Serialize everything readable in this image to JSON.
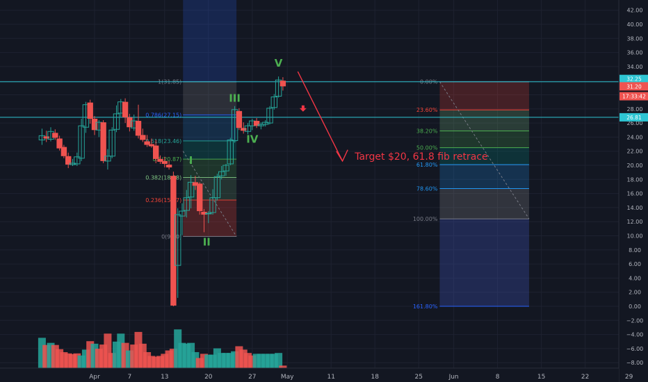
{
  "colors": {
    "background": "#131722",
    "grid": "#1e2230",
    "up": "#26a69a",
    "down": "#ef5350",
    "axis_text": "#b2b5be",
    "cyan_line": "#2ec5d3",
    "annotation": "#f23645",
    "wave_label": "#4caf50"
  },
  "chart_data": {
    "type": "candlestick",
    "ylim": [
      -9,
      43.5
    ],
    "y_ticks": [
      -8,
      -6,
      -4,
      -2,
      0,
      2,
      4,
      6,
      8,
      10,
      12,
      14,
      16,
      18,
      20,
      22,
      24,
      26,
      28,
      30,
      32,
      34,
      36,
      38,
      40,
      42
    ],
    "y_tick_labels": [
      "−8.00",
      "−6.00",
      "−4.00",
      "−2.00",
      "0.00",
      "2.00",
      "4.00",
      "6.00",
      "8.00",
      "10.00",
      "12.00",
      "14.00",
      "16.00",
      "18.00",
      "20.00",
      "22.00",
      "24.00",
      "26.00",
      "28.00",
      "30.00",
      "32.00",
      "34.00",
      "36.00",
      "38.00",
      "40.00",
      "42.00"
    ],
    "x_ticks": [
      {
        "label": "Apr",
        "x": 0
      },
      {
        "label": "7",
        "x": 4
      },
      {
        "label": "13",
        "x": 8
      },
      {
        "label": "20",
        "x": 13
      },
      {
        "label": "27",
        "x": 18
      },
      {
        "label": "May",
        "x": 22
      },
      {
        "label": "11",
        "x": 27
      },
      {
        "label": "18",
        "x": 32
      },
      {
        "label": "25",
        "x": 37
      },
      {
        "label": "Jun",
        "x": 41
      },
      {
        "label": "8",
        "x": 46
      },
      {
        "label": "15",
        "x": 51
      },
      {
        "label": "22",
        "x": 56
      },
      {
        "label": "29",
        "x": 61
      }
    ],
    "candles": [
      {
        "x": -6.0,
        "o": 23.6,
        "h": 25.2,
        "l": 22.9,
        "c": 24.2
      },
      {
        "x": -5.5,
        "o": 24.1,
        "h": 24.9,
        "l": 23.3,
        "c": 23.8
      },
      {
        "x": -5.0,
        "o": 23.7,
        "h": 25.4,
        "l": 23.4,
        "c": 24.8
      },
      {
        "x": -4.5,
        "o": 24.6,
        "h": 25.1,
        "l": 23.6,
        "c": 23.9
      },
      {
        "x": -4.0,
        "o": 23.8,
        "h": 24.2,
        "l": 22.1,
        "c": 22.4
      },
      {
        "x": -3.5,
        "o": 22.6,
        "h": 22.9,
        "l": 21.0,
        "c": 21.3
      },
      {
        "x": -3.0,
        "o": 21.3,
        "h": 21.8,
        "l": 19.6,
        "c": 20.1
      },
      {
        "x": -2.5,
        "o": 20.1,
        "h": 20.9,
        "l": 19.9,
        "c": 20.3
      },
      {
        "x": -2.0,
        "o": 20.2,
        "h": 21.8,
        "l": 19.9,
        "c": 21.2
      },
      {
        "x": -1.5,
        "o": 21.0,
        "h": 26.6,
        "l": 20.6,
        "c": 25.6
      },
      {
        "x": -1.0,
        "o": 25.4,
        "h": 29.0,
        "l": 24.6,
        "c": 28.6
      },
      {
        "x": -0.5,
        "o": 28.9,
        "h": 29.3,
        "l": 25.9,
        "c": 26.6
      },
      {
        "x": 0.0,
        "o": 26.6,
        "h": 27.0,
        "l": 24.3,
        "c": 25.0
      },
      {
        "x": 0.5,
        "o": 25.0,
        "h": 26.4,
        "l": 24.0,
        "c": 26.1
      },
      {
        "x": 1.0,
        "o": 26.1,
        "h": 26.4,
        "l": 20.3,
        "c": 20.6
      },
      {
        "x": 1.5,
        "o": 20.6,
        "h": 22.3,
        "l": 19.4,
        "c": 21.3
      },
      {
        "x": 2.0,
        "o": 21.3,
        "h": 25.4,
        "l": 21.0,
        "c": 25.0
      },
      {
        "x": 2.5,
        "o": 25.1,
        "h": 28.5,
        "l": 24.7,
        "c": 27.3
      },
      {
        "x": 3.0,
        "o": 27.4,
        "h": 29.4,
        "l": 26.9,
        "c": 29.0
      },
      {
        "x": 3.5,
        "o": 29.0,
        "h": 29.5,
        "l": 26.0,
        "c": 26.8
      },
      {
        "x": 4.0,
        "o": 26.8,
        "h": 27.3,
        "l": 24.8,
        "c": 25.4
      },
      {
        "x": 4.5,
        "o": 25.3,
        "h": 27.2,
        "l": 24.9,
        "c": 26.3
      },
      {
        "x": 5.0,
        "o": 26.3,
        "h": 28.6,
        "l": 23.8,
        "c": 24.2
      },
      {
        "x": 5.5,
        "o": 24.3,
        "h": 25.2,
        "l": 23.3,
        "c": 23.6
      },
      {
        "x": 6.0,
        "o": 23.4,
        "h": 24.3,
        "l": 22.6,
        "c": 22.9
      },
      {
        "x": 6.5,
        "o": 23.0,
        "h": 23.8,
        "l": 22.5,
        "c": 22.7
      },
      {
        "x": 7.0,
        "o": 22.8,
        "h": 23.6,
        "l": 20.3,
        "c": 20.9
      },
      {
        "x": 7.5,
        "o": 20.9,
        "h": 21.4,
        "l": 20.2,
        "c": 20.5
      },
      {
        "x": 8.0,
        "o": 20.6,
        "h": 21.2,
        "l": 19.7,
        "c": 20.2
      },
      {
        "x": 8.5,
        "o": 20.1,
        "h": 20.6,
        "l": 19.4,
        "c": 19.7
      },
      {
        "x": 9.0,
        "o": 18.5,
        "h": 19.1,
        "l": 0.0,
        "c": 0.1
      },
      {
        "x": 9.5,
        "o": 5.8,
        "h": 13.9,
        "l": 1.2,
        "c": 13.0
      },
      {
        "x": 10.0,
        "o": 12.8,
        "h": 14.6,
        "l": 10.1,
        "c": 13.5
      },
      {
        "x": 10.5,
        "o": 13.6,
        "h": 16.5,
        "l": 12.6,
        "c": 15.4
      },
      {
        "x": 11.0,
        "o": 15.5,
        "h": 18.6,
        "l": 13.9,
        "c": 17.6
      },
      {
        "x": 11.5,
        "o": 17.6,
        "h": 18.5,
        "l": 16.5,
        "c": 17.1
      },
      {
        "x": 12.0,
        "o": 17.4,
        "h": 17.6,
        "l": 13.0,
        "c": 13.5
      },
      {
        "x": 12.5,
        "o": 13.4,
        "h": 13.8,
        "l": 10.5,
        "c": 13.0
      },
      {
        "x": 13.0,
        "o": 13.2,
        "h": 13.5,
        "l": 11.8,
        "c": 13.2
      },
      {
        "x": 13.5,
        "o": 13.3,
        "h": 16.6,
        "l": 13.0,
        "c": 15.4
      },
      {
        "x": 14.0,
        "o": 15.4,
        "h": 18.8,
        "l": 15.0,
        "c": 18.4
      },
      {
        "x": 14.5,
        "o": 18.5,
        "h": 19.9,
        "l": 18.0,
        "c": 19.1
      },
      {
        "x": 15.0,
        "o": 19.2,
        "h": 20.2,
        "l": 18.5,
        "c": 20.0
      },
      {
        "x": 15.5,
        "o": 20.2,
        "h": 23.9,
        "l": 20.0,
        "c": 23.6
      },
      {
        "x": 16.0,
        "o": 23.5,
        "h": 28.4,
        "l": 23.2,
        "c": 27.9
      },
      {
        "x": 16.5,
        "o": 27.7,
        "h": 28.1,
        "l": 25.0,
        "c": 25.3
      },
      {
        "x": 17.0,
        "o": 25.3,
        "h": 26.1,
        "l": 24.5,
        "c": 24.9
      },
      {
        "x": 17.5,
        "o": 24.8,
        "h": 26.0,
        "l": 24.4,
        "c": 25.6
      },
      {
        "x": 18.0,
        "o": 25.6,
        "h": 26.6,
        "l": 25.0,
        "c": 26.3
      },
      {
        "x": 18.5,
        "o": 26.3,
        "h": 26.7,
        "l": 25.3,
        "c": 25.6
      },
      {
        "x": 19.0,
        "o": 25.6,
        "h": 26.1,
        "l": 25.1,
        "c": 25.8
      },
      {
        "x": 19.5,
        "o": 25.8,
        "h": 26.4,
        "l": 25.5,
        "c": 26.1
      },
      {
        "x": 20.0,
        "o": 26.0,
        "h": 28.4,
        "l": 25.8,
        "c": 28.1
      },
      {
        "x": 20.5,
        "o": 28.2,
        "h": 30.1,
        "l": 27.9,
        "c": 29.7
      },
      {
        "x": 21.0,
        "o": 29.8,
        "h": 32.6,
        "l": 29.6,
        "c": 32.1
      },
      {
        "x": 21.5,
        "o": 32.0,
        "h": 32.5,
        "l": 30.6,
        "c": 31.2
      }
    ],
    "volume": [
      {
        "x": -6.0,
        "v": 0.72,
        "up": true
      },
      {
        "x": -5.5,
        "v": 0.55,
        "up": false
      },
      {
        "x": -5.0,
        "v": 0.6,
        "up": true
      },
      {
        "x": -4.5,
        "v": 0.55,
        "up": false
      },
      {
        "x": -4.0,
        "v": 0.45,
        "up": false
      },
      {
        "x": -3.5,
        "v": 0.38,
        "up": false
      },
      {
        "x": -3.0,
        "v": 0.35,
        "up": false
      },
      {
        "x": -2.5,
        "v": 0.33,
        "up": false
      },
      {
        "x": -2.0,
        "v": 0.35,
        "up": false
      },
      {
        "x": -1.5,
        "v": 0.3,
        "up": true
      },
      {
        "x": -1.0,
        "v": 0.44,
        "up": true
      },
      {
        "x": -0.5,
        "v": 0.64,
        "up": false
      },
      {
        "x": 0.0,
        "v": 0.58,
        "up": true
      },
      {
        "x": 0.5,
        "v": 0.46,
        "up": false
      },
      {
        "x": 1.0,
        "v": 0.56,
        "up": false
      },
      {
        "x": 1.5,
        "v": 0.82,
        "up": false
      },
      {
        "x": 2.0,
        "v": 0.36,
        "up": false
      },
      {
        "x": 2.5,
        "v": 0.63,
        "up": true
      },
      {
        "x": 3.0,
        "v": 0.82,
        "up": true
      },
      {
        "x": 3.5,
        "v": 0.6,
        "up": false
      },
      {
        "x": 4.0,
        "v": 0.42,
        "up": true
      },
      {
        "x": 4.5,
        "v": 0.56,
        "up": false
      },
      {
        "x": 5.0,
        "v": 0.86,
        "up": false
      },
      {
        "x": 5.5,
        "v": 0.58,
        "up": false
      },
      {
        "x": 6.0,
        "v": 0.38,
        "up": false
      },
      {
        "x": 6.5,
        "v": 0.29,
        "up": false
      },
      {
        "x": 7.0,
        "v": 0.27,
        "up": false
      },
      {
        "x": 7.5,
        "v": 0.29,
        "up": false
      },
      {
        "x": 8.0,
        "v": 0.34,
        "up": false
      },
      {
        "x": 8.5,
        "v": 0.42,
        "up": false
      },
      {
        "x": 9.0,
        "v": 0.46,
        "up": false
      },
      {
        "x": 9.5,
        "v": 0.92,
        "up": true
      },
      {
        "x": 10.0,
        "v": 0.6,
        "up": true
      },
      {
        "x": 10.5,
        "v": 0.58,
        "up": true
      },
      {
        "x": 11.0,
        "v": 0.6,
        "up": true
      },
      {
        "x": 11.5,
        "v": 0.38,
        "up": true
      },
      {
        "x": 12.0,
        "v": 0.24,
        "up": false
      },
      {
        "x": 12.5,
        "v": 0.34,
        "up": false
      },
      {
        "x": 13.0,
        "v": 0.32,
        "up": true
      },
      {
        "x": 13.5,
        "v": 0.32,
        "up": true
      },
      {
        "x": 14.0,
        "v": 0.47,
        "up": true
      },
      {
        "x": 14.5,
        "v": 0.36,
        "up": true
      },
      {
        "x": 15.0,
        "v": 0.36,
        "up": true
      },
      {
        "x": 15.5,
        "v": 0.36,
        "up": true
      },
      {
        "x": 16.0,
        "v": 0.4,
        "up": true
      },
      {
        "x": 16.5,
        "v": 0.52,
        "up": false
      },
      {
        "x": 17.0,
        "v": 0.44,
        "up": false
      },
      {
        "x": 17.5,
        "v": 0.36,
        "up": false
      },
      {
        "x": 18.0,
        "v": 0.3,
        "up": false
      },
      {
        "x": 18.5,
        "v": 0.34,
        "up": true
      },
      {
        "x": 19.0,
        "v": 0.34,
        "up": true
      },
      {
        "x": 19.5,
        "v": 0.34,
        "up": true
      },
      {
        "x": 20.0,
        "v": 0.34,
        "up": true
      },
      {
        "x": 20.5,
        "v": 0.34,
        "up": true
      },
      {
        "x": 21.0,
        "v": 0.36,
        "up": true
      },
      {
        "x": 21.5,
        "v": 0.06,
        "up": false
      }
    ],
    "volume_max_y": -2.8,
    "fib_left": {
      "levels": [
        {
          "label": "1(31.85)",
          "value": 31.85
        },
        {
          "label": "0.786(27.15)",
          "value": 27.15
        },
        {
          "label": "0.618(23.46)",
          "value": 23.46
        },
        {
          "label": "0.5(20.87)",
          "value": 20.87
        },
        {
          "label": "0.382(18.28)",
          "value": 18.28
        },
        {
          "label": "0.236(15.07)",
          "value": 15.07
        },
        {
          "label": "0(9.90)",
          "value": 9.9
        }
      ]
    },
    "fib_right": {
      "levels": [
        {
          "label": "0.00%",
          "value": 31.85
        },
        {
          "label": "23.60%",
          "value": 27.86
        },
        {
          "label": "38.20%",
          "value": 24.88
        },
        {
          "label": "50.00%",
          "value": 22.5
        },
        {
          "label": "61.80%",
          "value": 20.1
        },
        {
          "label": "78.60%",
          "value": 16.7
        },
        {
          "label": "100.00%",
          "value": 12.4
        },
        {
          "label": "161.80%",
          "value": 0.0
        }
      ]
    },
    "waves": [
      {
        "label": "I",
        "x": 11.0,
        "y": 20.2
      },
      {
        "label": "II",
        "x": 12.8,
        "y": 8.6
      },
      {
        "label": "III",
        "x": 16.0,
        "y": 29.0
      },
      {
        "label": "IV",
        "x": 18.0,
        "y": 23.2
      },
      {
        "label": "V",
        "x": 21.0,
        "y": 34.0
      }
    ],
    "annotation": "Target $20, 61.8 fib retrace",
    "price_labels": [
      {
        "label": "32.25",
        "value": 32.25
      },
      {
        "label": "31.20",
        "value": 31.2
      },
      {
        "label": "17:33:42",
        "value": 29.8
      },
      {
        "label": "26.81",
        "value": 26.81
      }
    ],
    "horizontal_lines": [
      31.85,
      26.81
    ]
  }
}
